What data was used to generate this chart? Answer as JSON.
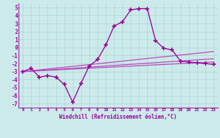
{
  "xlabel": "Windchill (Refroidissement éolien,°C)",
  "xlim": [
    -0.5,
    23.5
  ],
  "ylim": [
    -7.5,
    5.5
  ],
  "xticks": [
    0,
    1,
    2,
    3,
    4,
    5,
    6,
    7,
    8,
    9,
    10,
    11,
    12,
    13,
    14,
    15,
    16,
    17,
    18,
    19,
    20,
    21,
    22,
    23
  ],
  "yticks": [
    -7,
    -6,
    -5,
    -4,
    -3,
    -2,
    -1,
    0,
    1,
    2,
    3,
    4,
    5
  ],
  "background_color": "#cceaea",
  "grid_color": "#b0d8d8",
  "purple_dark": "#990099",
  "purple_mid": "#bb44bb",
  "main_line": {
    "x": [
      0,
      1,
      2,
      3,
      4,
      5,
      6,
      7,
      8,
      9,
      10,
      11,
      12,
      13,
      14,
      15,
      16,
      17,
      18,
      19,
      20,
      21,
      22,
      23
    ],
    "y": [
      -3.0,
      -2.6,
      -3.7,
      -3.5,
      -3.7,
      -4.6,
      -6.8,
      -4.5,
      -2.3,
      -1.5,
      0.3,
      2.7,
      3.2,
      4.7,
      4.85,
      4.85,
      0.85,
      -0.1,
      -0.3,
      -1.7,
      -1.8,
      -1.9,
      -2.0,
      -2.1
    ]
  },
  "trend_lines": [
    {
      "x0": 0,
      "y0": -3.0,
      "x1": 23,
      "y1": -1.8
    },
    {
      "x0": 0,
      "y0": -3.0,
      "x1": 23,
      "y1": -1.4
    },
    {
      "x0": 0,
      "y0": -3.0,
      "x1": 23,
      "y1": -0.5
    }
  ]
}
